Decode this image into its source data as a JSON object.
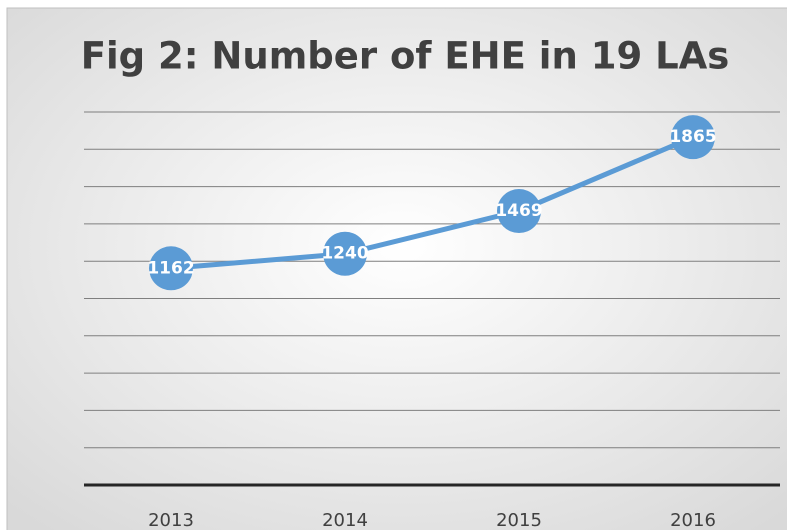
{
  "chart_data": {
    "type": "line",
    "title": "Fig 2: Number of EHE in 19 LAs",
    "categories": [
      "2013",
      "2014",
      "2015",
      "2016"
    ],
    "series": [
      {
        "name": "EHE",
        "color": "#5b9bd5",
        "values": [
          1162,
          1240,
          1469,
          1865
        ]
      }
    ],
    "ylim": [
      0,
      2000
    ],
    "yticks": [
      0,
      200,
      400,
      600,
      800,
      1000,
      1200,
      1400,
      1600,
      1800,
      2000
    ],
    "grid": true
  }
}
